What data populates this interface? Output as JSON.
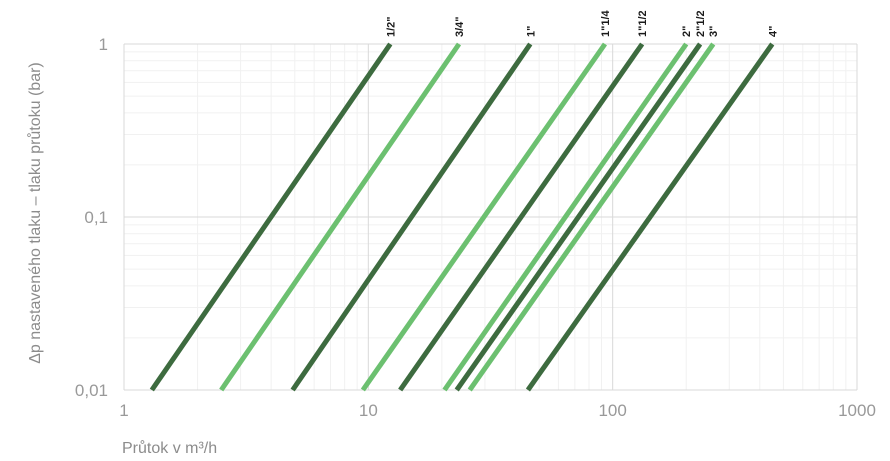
{
  "chart_data": {
    "type": "line",
    "title": "",
    "xlabel": "Průtok v m³/h",
    "ylabel": "Δp nastaveného tlaku – tlaku průtoku (bar)",
    "x_scale": "log",
    "y_scale": "log",
    "xlim": [
      1,
      1000
    ],
    "ylim": [
      0.01,
      1
    ],
    "x_ticks": [
      1,
      10,
      100,
      1000
    ],
    "x_tick_labels": [
      "1",
      "10",
      "100",
      "1000"
    ],
    "y_ticks": [
      0.01,
      0.1,
      1
    ],
    "y_tick_labels": [
      "0,01",
      "0,1",
      "1"
    ],
    "grid": true,
    "legend": "labels at top of each line",
    "series": [
      {
        "name": "1/2\"",
        "color": "#3d6b3f",
        "x": [
          1.3,
          12.3
        ],
        "y": [
          0.01,
          1
        ]
      },
      {
        "name": "3/4\"",
        "color": "#6cc070",
        "x": [
          2.5,
          23.5
        ],
        "y": [
          0.01,
          1
        ]
      },
      {
        "name": "1\"",
        "color": "#3d6b3f",
        "x": [
          4.9,
          46
        ],
        "y": [
          0.01,
          1
        ]
      },
      {
        "name": "1\"1/4",
        "color": "#6cc070",
        "x": [
          9.5,
          93
        ],
        "y": [
          0.01,
          1
        ]
      },
      {
        "name": "1\"1/2",
        "color": "#3d6b3f",
        "x": [
          13.5,
          132
        ],
        "y": [
          0.01,
          1
        ]
      },
      {
        "name": "2\"",
        "color": "#6cc070",
        "x": [
          20.5,
          200
        ],
        "y": [
          0.01,
          1
        ]
      },
      {
        "name": "2\"1/2",
        "color": "#3d6b3f",
        "x": [
          23,
          228
        ],
        "y": [
          0.01,
          1
        ]
      },
      {
        "name": "3\"",
        "color": "#6cc070",
        "x": [
          26,
          258
        ],
        "y": [
          0.01,
          1
        ]
      },
      {
        "name": "4\"",
        "color": "#3d6b3f",
        "x": [
          45,
          450
        ],
        "y": [
          0.01,
          1
        ]
      }
    ]
  }
}
